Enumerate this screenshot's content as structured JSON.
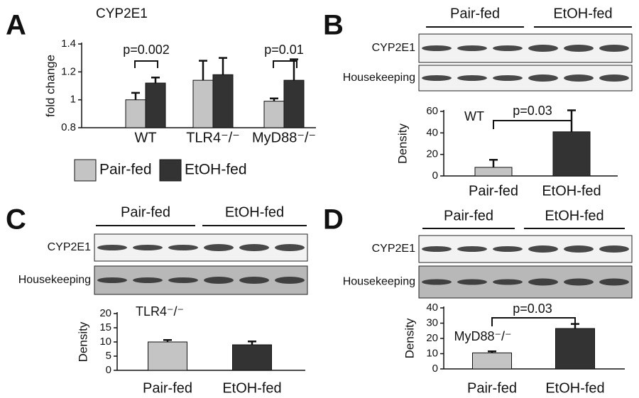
{
  "chart_data": [
    {
      "type": "bar",
      "panel_label": "A",
      "title": "CYP2E1",
      "ylabel": "fold change",
      "categories": [
        "WT",
        "TLR4⁻/⁻",
        "MyD88⁻/⁻"
      ],
      "series": [
        {
          "name": "Pair-fed",
          "color": "#c4c4c4",
          "values": [
            1,
            1.14,
            0.99
          ],
          "errors": [
            0.05,
            0.14,
            0.02
          ]
        },
        {
          "name": "EtOH-fed",
          "color": "#333333",
          "values": [
            1.12,
            1.18,
            1.14
          ],
          "errors": [
            0.04,
            0.12,
            0.15
          ]
        }
      ],
      "ylim": [
        0.8,
        1.4
      ],
      "yticks": [
        0.8,
        1,
        1.2,
        1.4
      ],
      "annotations": [
        "p=0.002",
        "p=0.01"
      ]
    },
    {
      "type": "bar",
      "panel_label": "B",
      "blot": {
        "groups": [
          "Pair-fed",
          "EtOH-fed"
        ],
        "rows": [
          "CYP2E1",
          "Housekeeping"
        ]
      },
      "ylabel": "Density",
      "categories": [
        "Pair-fed",
        "EtOH-fed"
      ],
      "values": [
        8,
        41
      ],
      "errors": [
        7,
        20
      ],
      "colors": [
        "#c4c4c4",
        "#333333"
      ],
      "ylim": [
        0,
        60
      ],
      "yticks": [
        0,
        20,
        40,
        60
      ],
      "annotations": [
        "WT",
        "p=0.03"
      ]
    },
    {
      "type": "bar",
      "panel_label": "C",
      "blot": {
        "groups": [
          "Pair-fed",
          "EtOH-fed"
        ],
        "rows": [
          "CYP2E1",
          "Housekeeping"
        ]
      },
      "ylabel": "Density",
      "categories": [
        "Pair-fed",
        "EtOH-fed"
      ],
      "values": [
        10,
        9
      ],
      "errors": [
        0.7,
        1.2
      ],
      "colors": [
        "#c4c4c4",
        "#333333"
      ],
      "ylim": [
        0,
        20
      ],
      "yticks": [
        0,
        5,
        10,
        15,
        20
      ],
      "annotations": [
        "TLR4⁻/⁻"
      ]
    },
    {
      "type": "bar",
      "panel_label": "D",
      "blot": {
        "groups": [
          "Pair-fed",
          "EtOH-fed"
        ],
        "rows": [
          "CYP2E1",
          "Housekeeping"
        ]
      },
      "ylabel": "Density",
      "categories": [
        "Pair-fed",
        "EtOH-fed"
      ],
      "values": [
        10.5,
        26.5
      ],
      "errors": [
        1,
        3
      ],
      "colors": [
        "#c4c4c4",
        "#333333"
      ],
      "ylim": [
        0,
        40
      ],
      "yticks": [
        0,
        10,
        20,
        30,
        40
      ],
      "annotations": [
        "p=0.03",
        "MyD88⁻/⁻"
      ]
    }
  ]
}
